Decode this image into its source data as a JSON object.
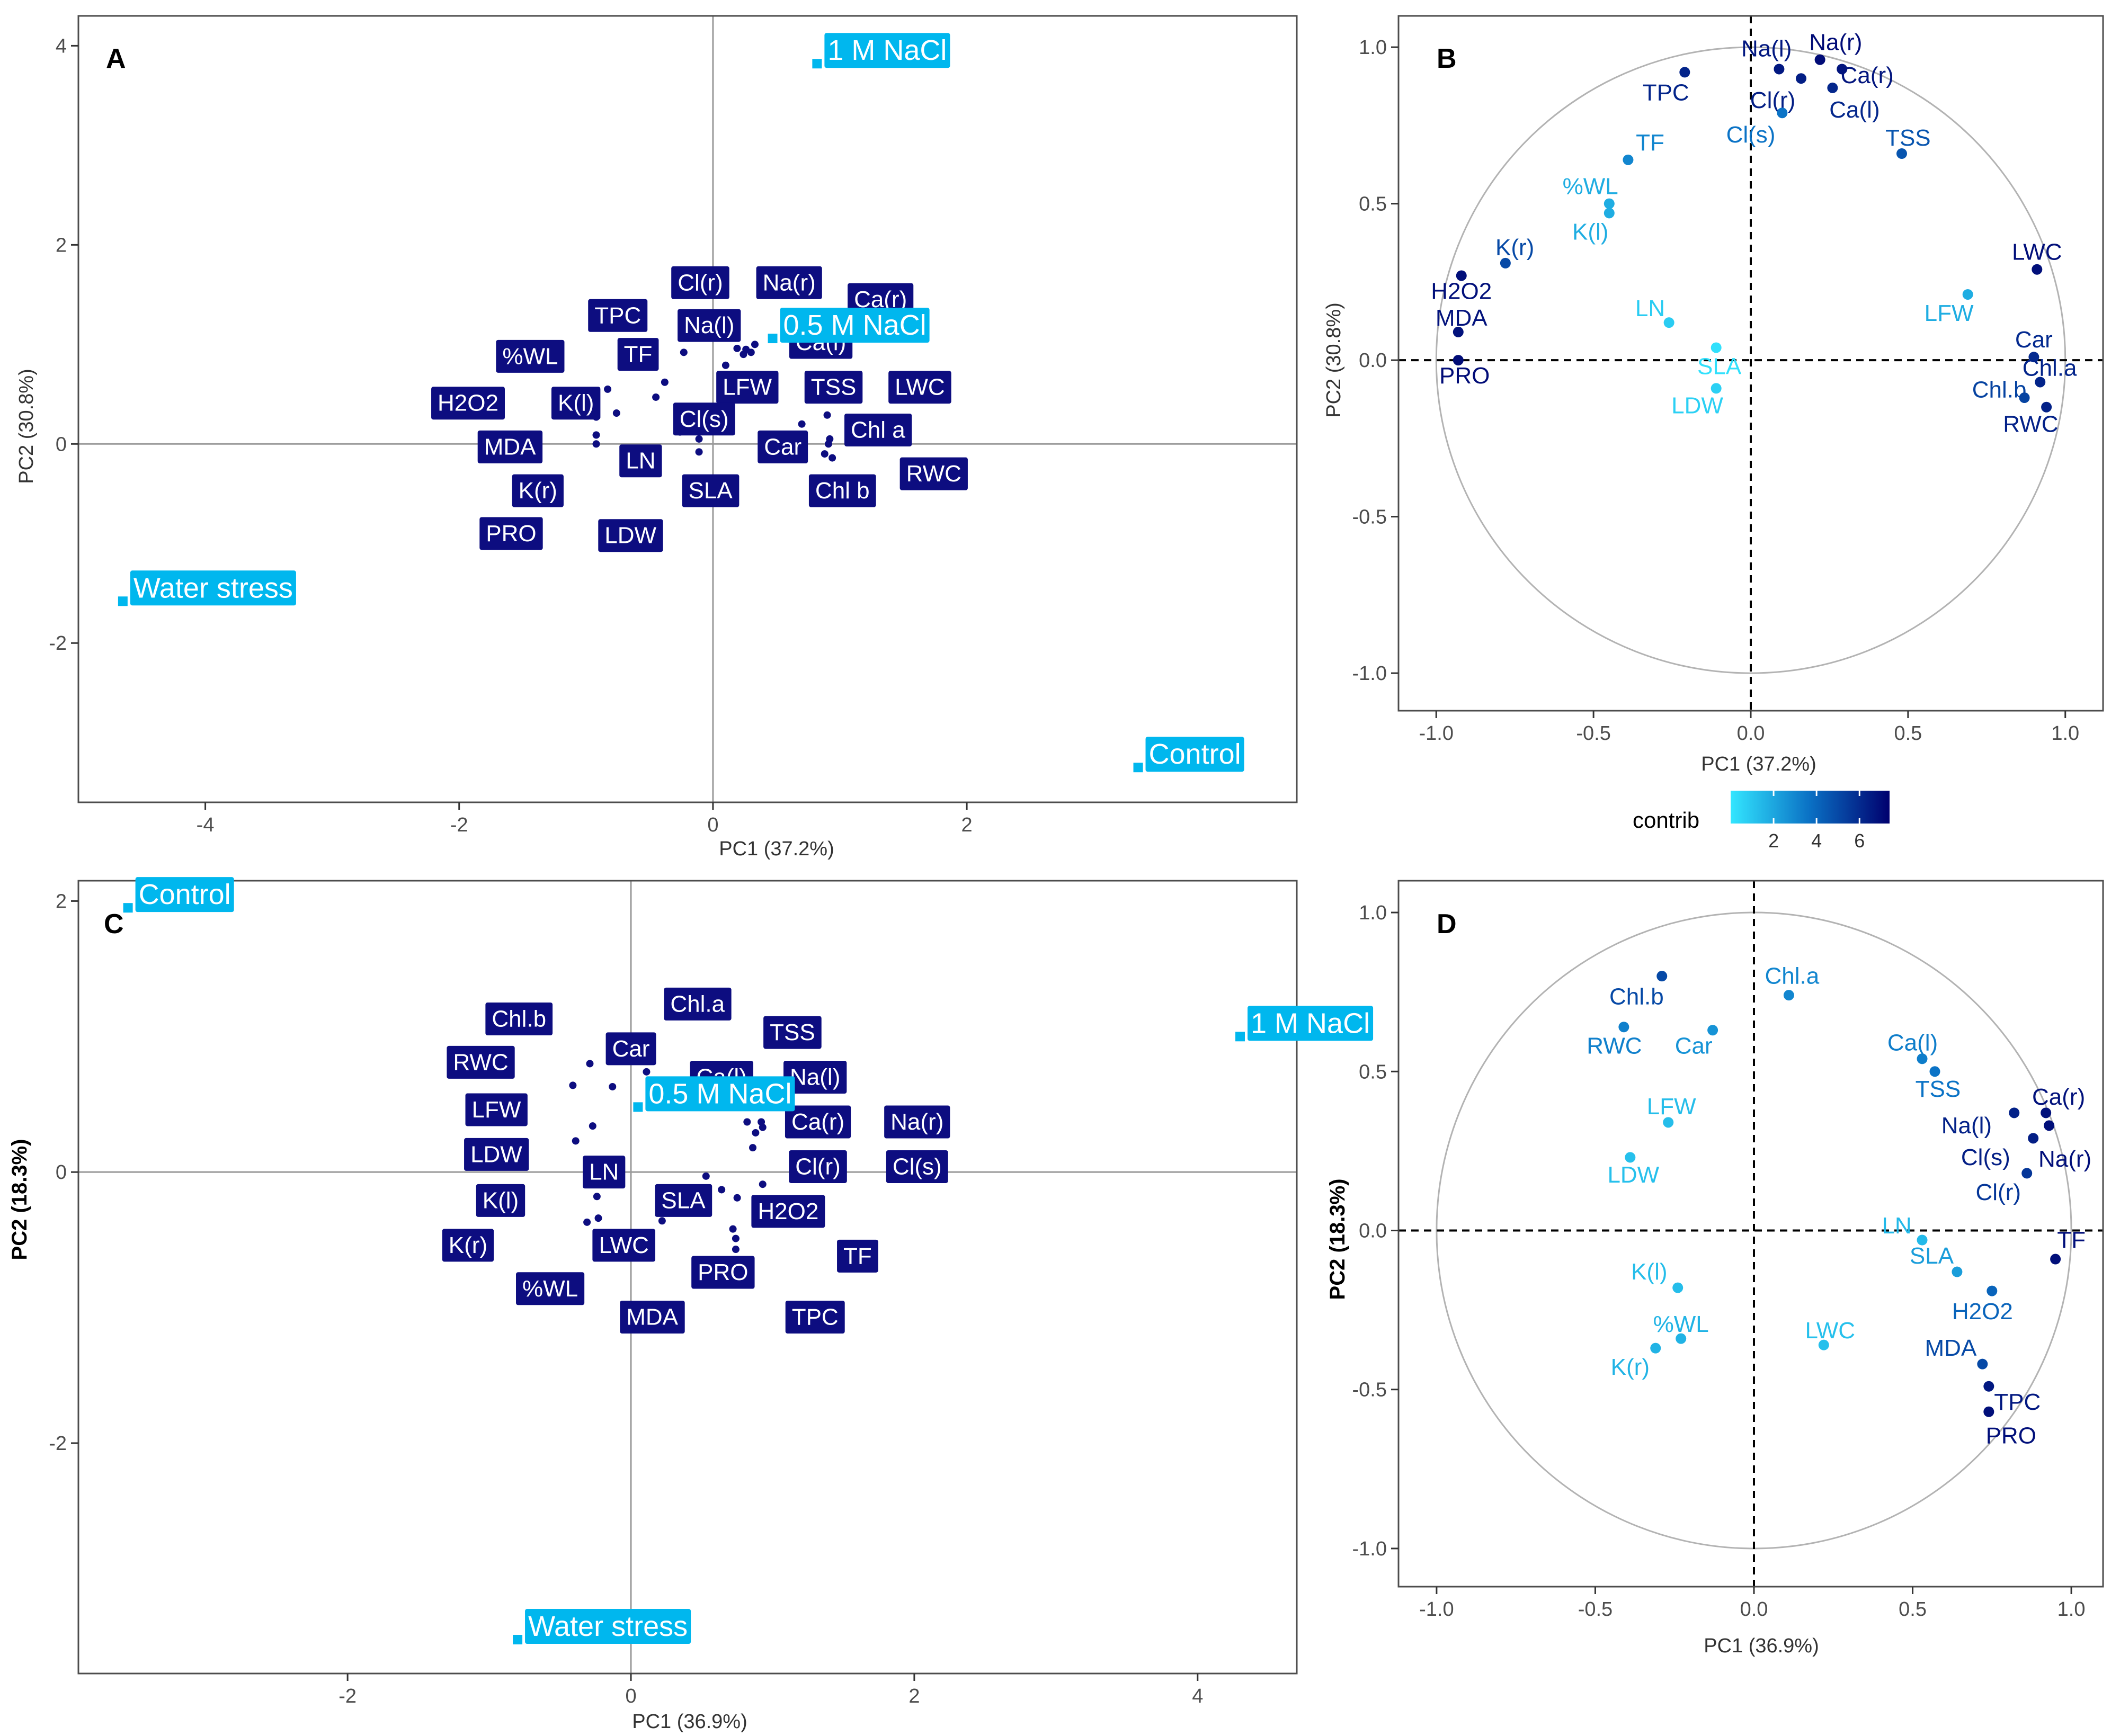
{
  "chart_data": [
    {
      "panel": "A",
      "type": "scatter",
      "xlabel": "PC1 (37.2%)",
      "ylabel": "PC2 (30.8%)",
      "xlim": [
        -5.0,
        4.6
      ],
      "ylim": [
        -3.6,
        4.3
      ],
      "xticks": [
        -4,
        -2,
        0,
        2
      ],
      "yticks": [
        -2,
        0,
        2,
        4
      ],
      "individuals": [
        {
          "label": "1 M NaCl",
          "x": 0.82,
          "y": 3.82
        },
        {
          "label": "0.5 M NaCl",
          "x": 0.47,
          "y": 1.06
        },
        {
          "label": "Water stress",
          "x": -4.65,
          "y": -1.58
        },
        {
          "label": "Control",
          "x": 3.35,
          "y": -3.25
        }
      ],
      "variables": [
        {
          "label": "Cl(r)",
          "x": 0.19,
          "y": 0.96,
          "lx": -0.1,
          "ly": 1.62
        },
        {
          "label": "Na(r)",
          "x": 0.26,
          "y": 0.95,
          "lx": 0.6,
          "ly": 1.62
        },
        {
          "label": "Ca(r)",
          "x": 0.3,
          "y": 0.92,
          "lx": 1.32,
          "ly": 1.45
        },
        {
          "label": "TPC",
          "x": -0.23,
          "y": 0.92,
          "lx": -0.75,
          "ly": 1.29
        },
        {
          "label": "Na(l)",
          "x": 0.24,
          "y": 0.9,
          "lx": -0.03,
          "ly": 1.19
        },
        {
          "label": "Ca(l)",
          "x": 0.33,
          "y": 1.0,
          "lx": 0.85,
          "ly": 1.02
        },
        {
          "label": "%WL",
          "x": -0.83,
          "y": 0.55,
          "lx": -1.44,
          "ly": 0.88
        },
        {
          "label": "TF",
          "x": -0.38,
          "y": 0.62,
          "lx": -0.59,
          "ly": 0.9
        },
        {
          "label": "LFW",
          "x": 0.7,
          "y": 0.2,
          "lx": 0.27,
          "ly": 0.57
        },
        {
          "label": "TSS",
          "x": 0.48,
          "y": 0.66,
          "lx": 0.95,
          "ly": 0.57
        },
        {
          "label": "LWC",
          "x": 0.9,
          "y": 0.29,
          "lx": 1.63,
          "ly": 0.57
        },
        {
          "label": "H2O2",
          "x": -0.92,
          "y": 0.27,
          "lx": -1.93,
          "ly": 0.41
        },
        {
          "label": "K(l)",
          "x": -0.45,
          "y": 0.47,
          "lx": -1.08,
          "ly": 0.41
        },
        {
          "label": "Cl(s)",
          "x": 0.1,
          "y": 0.79,
          "lx": -0.07,
          "ly": 0.25
        },
        {
          "label": "Chl a",
          "x": 0.92,
          "y": 0.05,
          "lx": 1.3,
          "ly": 0.14
        },
        {
          "label": "MDA",
          "x": -0.92,
          "y": 0.09,
          "lx": -1.6,
          "ly": -0.03
        },
        {
          "label": "Car",
          "x": 0.91,
          "y": 0.0,
          "lx": 0.55,
          "ly": -0.03
        },
        {
          "label": "LN",
          "x": -0.26,
          "y": 0.12,
          "lx": -0.57,
          "ly": -0.17
        },
        {
          "label": "RWC",
          "x": 0.94,
          "y": -0.14,
          "lx": 1.74,
          "ly": -0.3
        },
        {
          "label": "K(r)",
          "x": -0.76,
          "y": 0.31,
          "lx": -1.38,
          "ly": -0.47
        },
        {
          "label": "SLA",
          "x": -0.11,
          "y": 0.05,
          "lx": -0.02,
          "ly": -0.47
        },
        {
          "label": "Chl b",
          "x": 0.88,
          "y": -0.1,
          "lx": 1.02,
          "ly": -0.47
        },
        {
          "label": "PRO",
          "x": -0.92,
          "y": 0.0,
          "lx": -1.59,
          "ly": -0.9
        },
        {
          "label": "LDW",
          "x": -0.11,
          "y": -0.08,
          "lx": -0.65,
          "ly": -0.92
        }
      ]
    },
    {
      "panel": "B",
      "type": "scatter",
      "subtype": "correlation-circle",
      "xlabel": "PC1 (37.2%)",
      "ylabel": "PC2 (30.8%)",
      "xlim": [
        -1.12,
        1.12
      ],
      "ylim": [
        -1.12,
        1.1
      ],
      "xticks": [
        -1.0,
        -0.5,
        0.0,
        0.5,
        1.0
      ],
      "yticks": [
        -1.0,
        -0.5,
        0.0,
        0.5,
        1.0
      ],
      "tick_labels": [
        "-1.0",
        "-0.5",
        "0.0",
        "0.5",
        "1.0"
      ],
      "points": [
        {
          "label": "Na(l)",
          "x": 0.09,
          "y": 0.93,
          "c": 6.6,
          "lx": 0.05,
          "ly": 0.995
        },
        {
          "label": "Na(r)",
          "x": 0.22,
          "y": 0.96,
          "c": 7.0,
          "lx": 0.27,
          "ly": 1.015
        },
        {
          "label": "Ca(r)",
          "x": 0.29,
          "y": 0.93,
          "c": 6.7,
          "lx": 0.37,
          "ly": 0.91
        },
        {
          "label": "TPC",
          "x": -0.21,
          "y": 0.92,
          "c": 6.2,
          "lx": -0.27,
          "ly": 0.855
        },
        {
          "label": "Cl(r)",
          "x": 0.16,
          "y": 0.9,
          "c": 6.4,
          "lx": 0.07,
          "ly": 0.83
        },
        {
          "label": "Ca(l)",
          "x": 0.26,
          "y": 0.87,
          "c": 6.1,
          "lx": 0.33,
          "ly": 0.8
        },
        {
          "label": "Cl(s)",
          "x": 0.1,
          "y": 0.79,
          "c": 3.6,
          "lx": 0.0,
          "ly": 0.72
        },
        {
          "label": "TF",
          "x": -0.39,
          "y": 0.64,
          "c": 3.0,
          "lx": -0.32,
          "ly": 0.695
        },
        {
          "label": "TSS",
          "x": 0.48,
          "y": 0.66,
          "c": 4.6,
          "lx": 0.5,
          "ly": 0.71
        },
        {
          "label": "%WL",
          "x": -0.45,
          "y": 0.5,
          "c": 1.8,
          "lx": -0.51,
          "ly": 0.555
        },
        {
          "label": "K(l)",
          "x": -0.45,
          "y": 0.47,
          "c": 1.8,
          "lx": -0.51,
          "ly": 0.41
        },
        {
          "label": "K(r)",
          "x": -0.78,
          "y": 0.31,
          "c": 5.0,
          "lx": -0.75,
          "ly": 0.36
        },
        {
          "label": "LWC",
          "x": 0.91,
          "y": 0.29,
          "c": 6.9,
          "lx": 0.91,
          "ly": 0.345
        },
        {
          "label": "H2O2",
          "x": -0.92,
          "y": 0.27,
          "c": 6.9,
          "lx": -0.92,
          "ly": 0.22
        },
        {
          "label": "LFW",
          "x": 0.69,
          "y": 0.21,
          "c": 1.8,
          "lx": 0.63,
          "ly": 0.15
        },
        {
          "label": "LN",
          "x": -0.26,
          "y": 0.12,
          "c": 0.8,
          "lx": -0.32,
          "ly": 0.165
        },
        {
          "label": "MDA",
          "x": -0.93,
          "y": 0.09,
          "c": 6.8,
          "lx": -0.92,
          "ly": 0.135
        },
        {
          "label": "Car",
          "x": 0.9,
          "y": 0.01,
          "c": 6.0,
          "lx": 0.9,
          "ly": 0.065
        },
        {
          "label": "SLA",
          "x": -0.11,
          "y": 0.04,
          "c": 0.2,
          "lx": -0.1,
          "ly": -0.02
        },
        {
          "label": "Chl.a",
          "x": 0.92,
          "y": -0.07,
          "c": 6.2,
          "lx": 0.95,
          "ly": -0.025
        },
        {
          "label": "PRO",
          "x": -0.93,
          "y": 0.0,
          "c": 7.0,
          "lx": -0.91,
          "ly": -0.05
        },
        {
          "label": "LDW",
          "x": -0.11,
          "y": -0.09,
          "c": 0.7,
          "lx": -0.17,
          "ly": -0.145
        },
        {
          "label": "Chl.b",
          "x": 0.87,
          "y": -0.12,
          "c": 5.2,
          "lx": 0.79,
          "ly": -0.095
        },
        {
          "label": "RWC",
          "x": 0.94,
          "y": -0.15,
          "c": 6.3,
          "lx": 0.89,
          "ly": -0.205
        }
      ],
      "legend": {
        "title": "contrib",
        "ticks": [
          2,
          4,
          6
        ],
        "range": [
          0,
          7.4
        ]
      }
    },
    {
      "panel": "C",
      "type": "scatter",
      "xlabel": "PC1 (36.9%)",
      "ylabel": "PC2 (18.3%)",
      "xlim": [
        -3.9,
        4.7
      ],
      "ylim": [
        -3.7,
        2.15
      ],
      "xticks": [
        -2,
        0,
        2,
        4
      ],
      "yticks": [
        -2,
        0,
        2
      ],
      "individuals": [
        {
          "label": "Control",
          "x": -3.55,
          "y": 1.95
        },
        {
          "label": "1 M NaCl",
          "x": 4.3,
          "y": 1.0
        },
        {
          "label": "0.5 M NaCl",
          "x": 0.05,
          "y": 0.48
        },
        {
          "label": "Water stress",
          "x": -0.8,
          "y": -3.45
        }
      ],
      "variables": [
        {
          "label": "Chl.a",
          "x": 0.11,
          "y": 0.74,
          "lx": 0.47,
          "ly": 1.24
        },
        {
          "label": "Chl.b",
          "x": -0.29,
          "y": 0.8,
          "lx": -0.79,
          "ly": 1.13
        },
        {
          "label": "TSS",
          "x": 0.57,
          "y": 0.5,
          "lx": 1.14,
          "ly": 1.03
        },
        {
          "label": "Car",
          "x": -0.13,
          "y": 0.63,
          "lx": 0.0,
          "ly": 0.91
        },
        {
          "label": "RWC",
          "x": -0.41,
          "y": 0.64,
          "lx": -1.06,
          "ly": 0.81
        },
        {
          "label": "Ca(l)",
          "x": 0.53,
          "y": 0.54,
          "lx": 0.64,
          "ly": 0.7
        },
        {
          "label": "Na(l)",
          "x": 0.82,
          "y": 0.37,
          "lx": 1.3,
          "ly": 0.7
        },
        {
          "label": "LFW",
          "x": -0.27,
          "y": 0.34,
          "lx": -0.95,
          "ly": 0.46
        },
        {
          "label": "Ca(r)",
          "x": 0.92,
          "y": 0.37,
          "lx": 1.32,
          "ly": 0.37
        },
        {
          "label": "Na(r)",
          "x": 0.93,
          "y": 0.33,
          "lx": 2.02,
          "ly": 0.37
        },
        {
          "label": "LDW",
          "x": -0.39,
          "y": 0.23,
          "lx": -0.95,
          "ly": 0.13
        },
        {
          "label": "Cl(r)",
          "x": 0.86,
          "y": 0.18,
          "lx": 1.32,
          "ly": 0.04
        },
        {
          "label": "Cl(s)",
          "x": 0.88,
          "y": 0.29,
          "lx": 2.02,
          "ly": 0.04
        },
        {
          "label": "LN",
          "x": 0.53,
          "y": -0.03,
          "lx": -0.19,
          "ly": 0.0
        },
        {
          "label": "K(l)",
          "x": -0.24,
          "y": -0.18,
          "lx": -0.92,
          "ly": -0.21
        },
        {
          "label": "SLA",
          "x": 0.64,
          "y": -0.13,
          "lx": 0.37,
          "ly": -0.21
        },
        {
          "label": "H2O2",
          "x": 0.75,
          "y": -0.19,
          "lx": 1.11,
          "ly": -0.29
        },
        {
          "label": "K(r)",
          "x": -0.31,
          "y": -0.37,
          "lx": -1.15,
          "ly": -0.54
        },
        {
          "label": "LWC",
          "x": 0.22,
          "y": -0.36,
          "lx": -0.05,
          "ly": -0.54
        },
        {
          "label": "TF",
          "x": 0.93,
          "y": -0.09,
          "lx": 1.6,
          "ly": -0.62
        },
        {
          "label": "PRO",
          "x": 0.74,
          "y": -0.57,
          "lx": 0.65,
          "ly": -0.74
        },
        {
          "label": "%WL",
          "x": -0.23,
          "y": -0.34,
          "lx": -0.57,
          "ly": -0.86
        },
        {
          "label": "MDA",
          "x": 0.72,
          "y": -0.42,
          "lx": 0.15,
          "ly": -1.07
        },
        {
          "label": "TPC",
          "x": 0.74,
          "y": -0.49,
          "lx": 1.3,
          "ly": -1.07
        }
      ]
    },
    {
      "panel": "D",
      "type": "scatter",
      "subtype": "correlation-circle",
      "xlabel": "PC1 (36.9%)",
      "ylabel": "PC2 (18.3%)",
      "xlim": [
        -1.12,
        1.1
      ],
      "ylim": [
        -1.12,
        1.1
      ],
      "xticks": [
        -1.0,
        -0.5,
        0.0,
        0.5,
        1.0
      ],
      "yticks": [
        -1.0,
        -0.5,
        0.0,
        0.5,
        1.0
      ],
      "tick_labels": [
        "-1.0",
        "-0.5",
        "0.0",
        "0.5",
        "1.0"
      ],
      "points": [
        {
          "label": "Chl.b",
          "x": -0.29,
          "y": 0.8,
          "c": 5.0,
          "lx": -0.37,
          "ly": 0.735
        },
        {
          "label": "Chl.a",
          "x": 0.11,
          "y": 0.74,
          "c": 3.0,
          "lx": 0.12,
          "ly": 0.8
        },
        {
          "label": "RWC",
          "x": -0.41,
          "y": 0.64,
          "c": 3.2,
          "lx": -0.44,
          "ly": 0.58
        },
        {
          "label": "Car",
          "x": -0.13,
          "y": 0.63,
          "c": 2.6,
          "lx": -0.19,
          "ly": 0.58
        },
        {
          "label": "Ca(l)",
          "x": 0.53,
          "y": 0.54,
          "c": 3.3,
          "lx": 0.5,
          "ly": 0.59
        },
        {
          "label": "TSS",
          "x": 0.57,
          "y": 0.5,
          "c": 3.6,
          "lx": 0.58,
          "ly": 0.445
        },
        {
          "label": "Ca(r)",
          "x": 0.92,
          "y": 0.37,
          "c": 6.8,
          "lx": 0.96,
          "ly": 0.42
        },
        {
          "label": "Na(l)",
          "x": 0.82,
          "y": 0.37,
          "c": 6.3,
          "lx": 0.67,
          "ly": 0.33
        },
        {
          "label": "LFW",
          "x": -0.27,
          "y": 0.34,
          "c": 1.3,
          "lx": -0.26,
          "ly": 0.39
        },
        {
          "label": "Na(r)",
          "x": 0.93,
          "y": 0.33,
          "c": 6.9,
          "lx": 0.98,
          "ly": 0.225
        },
        {
          "label": "Cl(s)",
          "x": 0.88,
          "y": 0.29,
          "c": 6.4,
          "lx": 0.73,
          "ly": 0.23
        },
        {
          "label": "LDW",
          "x": -0.39,
          "y": 0.23,
          "c": 1.2,
          "lx": -0.38,
          "ly": 0.175
        },
        {
          "label": "Cl(r)",
          "x": 0.86,
          "y": 0.18,
          "c": 5.6,
          "lx": 0.77,
          "ly": 0.12
        },
        {
          "label": "LN",
          "x": 0.53,
          "y": -0.03,
          "c": 1.4,
          "lx": 0.45,
          "ly": 0.015
        },
        {
          "label": "TF",
          "x": 0.95,
          "y": -0.09,
          "c": 6.9,
          "lx": 1.0,
          "ly": -0.03
        },
        {
          "label": "SLA",
          "x": 0.64,
          "y": -0.13,
          "c": 2.3,
          "lx": 0.56,
          "ly": -0.08
        },
        {
          "label": "K(l)",
          "x": -0.24,
          "y": -0.18,
          "c": 1.3,
          "lx": -0.33,
          "ly": -0.13
        },
        {
          "label": "H2O2",
          "x": 0.75,
          "y": -0.19,
          "c": 4.1,
          "lx": 0.72,
          "ly": -0.255
        },
        {
          "label": "%WL",
          "x": -0.23,
          "y": -0.34,
          "c": 1.6,
          "lx": -0.23,
          "ly": -0.295
        },
        {
          "label": "LWC",
          "x": 0.22,
          "y": -0.36,
          "c": 1.2,
          "lx": 0.24,
          "ly": -0.315
        },
        {
          "label": "K(r)",
          "x": -0.31,
          "y": -0.37,
          "c": 1.6,
          "lx": -0.39,
          "ly": -0.43
        },
        {
          "label": "MDA",
          "x": 0.72,
          "y": -0.42,
          "c": 5.0,
          "lx": 0.62,
          "ly": -0.37
        },
        {
          "label": "TPC",
          "x": 0.74,
          "y": -0.49,
          "c": 6.6,
          "lx": 0.83,
          "ly": -0.54
        },
        {
          "label": "PRO",
          "x": 0.74,
          "y": -0.57,
          "c": 6.9,
          "lx": 0.81,
          "ly": -0.645
        }
      ]
    }
  ],
  "colors": {
    "individual": "#00b7ee",
    "variable_fill": "#0d0d80",
    "contrib_low": "#33e6ff",
    "contrib_high": "#00006e",
    "axis_line": "#999999",
    "circle": "#b3b3b3",
    "frame": "#4d4d4d"
  }
}
